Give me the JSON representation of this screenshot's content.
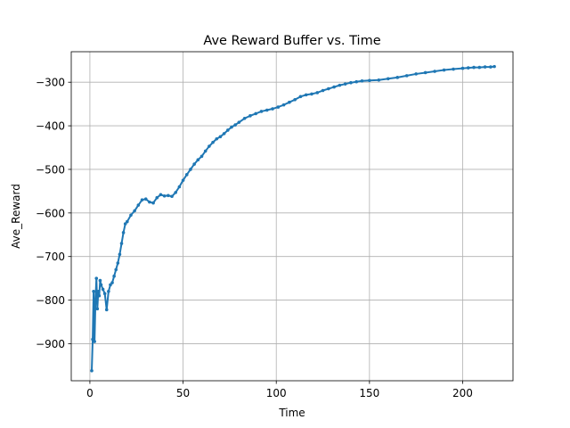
{
  "chart_data": {
    "type": "line",
    "title": "Ave Reward Buffer vs. Time",
    "xlabel": "Time",
    "ylabel": "Ave_Reward",
    "xlim": [
      -10,
      227
    ],
    "ylim": [
      -985,
      -230
    ],
    "xticks": [
      0,
      50,
      100,
      150,
      200
    ],
    "yticks": [
      -900,
      -800,
      -700,
      -600,
      -500,
      -400,
      -300
    ],
    "xtick_labels": [
      "0",
      "50",
      "100",
      "150",
      "200"
    ],
    "ytick_labels": [
      "−900",
      "−800",
      "−700",
      "−600",
      "−500",
      "−400",
      "−300"
    ],
    "grid": true,
    "series": [
      {
        "color": "#1f77b4",
        "marker": "circle",
        "x": [
          1,
          1.5,
          2,
          2.5,
          3,
          3.5,
          4,
          4.5,
          5,
          5.5,
          6,
          7,
          8,
          9,
          10,
          11,
          12,
          13,
          14,
          15,
          16,
          17,
          18,
          19,
          20,
          22,
          24,
          26,
          28,
          30,
          32,
          34,
          36,
          38,
          40,
          42,
          44,
          46,
          48,
          50,
          52,
          54,
          56,
          58,
          60,
          62,
          64,
          66,
          68,
          70,
          72,
          74,
          76,
          78,
          80,
          83,
          86,
          89,
          92,
          95,
          98,
          101,
          104,
          107,
          110,
          113,
          116,
          119,
          122,
          125,
          128,
          131,
          134,
          137,
          140,
          143,
          146,
          150,
          155,
          160,
          165,
          170,
          175,
          180,
          185,
          190,
          195,
          200,
          203,
          206,
          209,
          212,
          215,
          217
        ],
        "y": [
          -962,
          -890,
          -780,
          -895,
          -800,
          -750,
          -820,
          -780,
          -790,
          -755,
          -765,
          -775,
          -785,
          -822,
          -780,
          -765,
          -760,
          -745,
          -730,
          -715,
          -695,
          -670,
          -645,
          -625,
          -620,
          -605,
          -595,
          -582,
          -570,
          -568,
          -575,
          -577,
          -565,
          -558,
          -561,
          -560,
          -562,
          -553,
          -540,
          -525,
          -512,
          -500,
          -488,
          -478,
          -470,
          -458,
          -447,
          -438,
          -430,
          -425,
          -418,
          -410,
          -403,
          -398,
          -392,
          -383,
          -377,
          -372,
          -367,
          -364,
          -361,
          -357,
          -352,
          -346,
          -340,
          -333,
          -329,
          -327,
          -324,
          -319,
          -315,
          -311,
          -307,
          -304,
          -301,
          -299,
          -297,
          -296,
          -295,
          -292,
          -289,
          -285,
          -281,
          -278,
          -275,
          -272,
          -270,
          -268,
          -267,
          -266,
          -266,
          -265,
          -265,
          -264
        ]
      }
    ]
  }
}
